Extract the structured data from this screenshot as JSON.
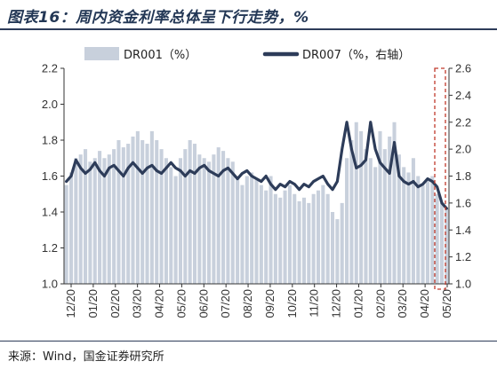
{
  "title": "图表16：周内资金利率总体呈下行走势，%",
  "source": "来源：Wind，国金证券研究所",
  "colors": {
    "bar": "#c8d0dc",
    "line": "#2d3c59",
    "marker": "#c0392b",
    "text": "#233755"
  },
  "chart_data": {
    "type": "bar+line",
    "title": "",
    "xlabel": "",
    "ylabel_left": "",
    "ylabel_right": "",
    "x_tick_labels": [
      "12/20",
      "01/20",
      "02/20",
      "03/20",
      "04/20",
      "05/20",
      "06/20",
      "07/20",
      "08/20",
      "09/20",
      "10/20",
      "11/20",
      "12/20",
      "01/20",
      "02/20",
      "03/20",
      "04/20",
      "05/20"
    ],
    "y_left": {
      "min": 1.0,
      "max": 2.2,
      "ticks": [
        "1.0",
        "1.2",
        "1.4",
        "1.6",
        "1.8",
        "2.0",
        "2.2"
      ]
    },
    "y_right": {
      "min": 1.0,
      "max": 2.6,
      "ticks": [
        "1.0",
        "1.2",
        "1.4",
        "1.6",
        "1.8",
        "2.0",
        "2.2",
        "2.4",
        "2.6"
      ]
    },
    "legend": {
      "position": "top",
      "entries": [
        "DR001（%）",
        "DR007（%，右轴）"
      ]
    },
    "series": [
      {
        "name": "DR001（%）",
        "type": "bar",
        "axis": "left",
        "values": [
          1.55,
          1.62,
          1.7,
          1.72,
          1.75,
          1.68,
          1.7,
          1.74,
          1.7,
          1.72,
          1.75,
          1.8,
          1.76,
          1.78,
          1.82,
          1.85,
          1.8,
          1.78,
          1.85,
          1.8,
          1.75,
          1.7,
          1.65,
          1.6,
          1.7,
          1.75,
          1.8,
          1.78,
          1.72,
          1.7,
          1.68,
          1.72,
          1.76,
          1.74,
          1.7,
          1.68,
          1.6,
          1.55,
          1.6,
          1.62,
          1.58,
          1.55,
          1.52,
          1.6,
          1.5,
          1.48,
          1.52,
          1.55,
          1.5,
          1.46,
          1.48,
          1.45,
          1.5,
          1.52,
          1.55,
          1.5,
          1.4,
          1.36,
          1.45,
          1.7,
          1.8,
          1.9,
          1.85,
          1.75,
          1.7,
          1.65,
          1.85,
          1.75,
          1.82,
          1.9,
          1.72,
          1.65,
          1.62,
          1.7,
          1.6,
          1.55,
          1.58,
          1.6,
          1.5,
          1.45,
          1.42
        ]
      },
      {
        "name": "DR007（%，右轴）",
        "type": "line",
        "axis": "right",
        "values": [
          1.76,
          1.8,
          1.92,
          1.86,
          1.82,
          1.85,
          1.9,
          1.84,
          1.8,
          1.86,
          1.88,
          1.84,
          1.8,
          1.86,
          1.9,
          1.86,
          1.82,
          1.86,
          1.88,
          1.84,
          1.82,
          1.86,
          1.9,
          1.86,
          1.84,
          1.8,
          1.84,
          1.82,
          1.86,
          1.88,
          1.84,
          1.82,
          1.8,
          1.84,
          1.86,
          1.82,
          1.78,
          1.82,
          1.84,
          1.8,
          1.78,
          1.76,
          1.8,
          1.74,
          1.7,
          1.74,
          1.72,
          1.76,
          1.74,
          1.7,
          1.74,
          1.72,
          1.76,
          1.78,
          1.8,
          1.74,
          1.7,
          1.76,
          2.0,
          2.2,
          2.0,
          1.86,
          1.88,
          1.92,
          2.2,
          2.0,
          1.9,
          1.86,
          1.82,
          2.05,
          1.8,
          1.76,
          1.74,
          1.76,
          1.72,
          1.74,
          1.78,
          1.76,
          1.72,
          1.6,
          1.56
        ]
      }
    ],
    "annotation": {
      "type": "dashed-box",
      "color": "#c0392b",
      "range": "05/20"
    }
  }
}
